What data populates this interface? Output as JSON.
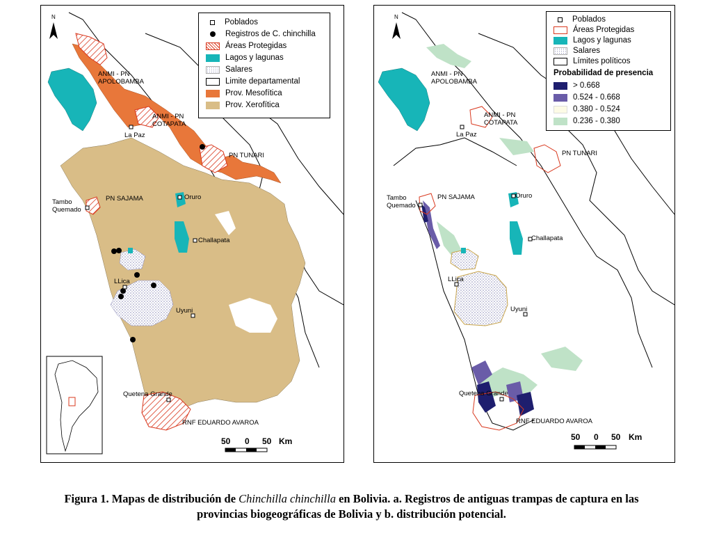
{
  "colors": {
    "mesofitica": "#e8773a",
    "xerofitica": "#d9bd87",
    "lagos": "#17b5b8",
    "areas_outline": "#d9381e",
    "prob_1": "#1e1e6e",
    "prob_2": "#6a5ca8",
    "prob_3": "#fdfbe6",
    "prob_4": "#bfe2c7"
  },
  "legend_a": {
    "items": [
      {
        "label": "Poblados",
        "icon": "hollow-square-icon"
      },
      {
        "label": "Registros de C. chinchilla",
        "icon": "black-dot-icon"
      },
      {
        "label": "Áreas Protegidas",
        "icon": "hatched-red-icon"
      },
      {
        "label": "Lagos y lagunas",
        "icon": "teal-fill-icon"
      },
      {
        "label": "Salares",
        "icon": "dotted-fill-icon"
      },
      {
        "label": "Limite departamental",
        "icon": "outline-box-icon"
      },
      {
        "label": "Prov. Mesofítica",
        "icon": "orange-fill-icon"
      },
      {
        "label": "Prov. Xerofítica",
        "icon": "tan-fill-icon"
      }
    ]
  },
  "legend_b": {
    "items": [
      {
        "label": "Poblados",
        "icon": "hollow-square-icon"
      },
      {
        "label": "Áreas Protegidas",
        "icon": "red-outline-icon"
      },
      {
        "label": "Lagos y lagunas",
        "icon": "teal-fill-icon"
      },
      {
        "label": "Salares",
        "icon": "dotted-fill-icon"
      },
      {
        "label": "Límites políticos",
        "icon": "outline-box-icon"
      }
    ],
    "prob_title": "Probabilidad de presencia",
    "prob_classes": [
      {
        "label": "> 0.668"
      },
      {
        "label": "0.524 - 0.668"
      },
      {
        "label": "0.380 - 0.524"
      },
      {
        "label": "0.236 - 0.380"
      }
    ]
  },
  "places": {
    "anmi_apolobamba": "ANMI - PN\nAPOLOBAMBA",
    "anmi_cotapata": "ANMI - PN\nCOTAPATA",
    "la_paz": "La Paz",
    "pn_tunari": "PN TUNARI",
    "tambo_quemado": "Tambo\nQuemado",
    "pn_sajama": "PN SAJAMA",
    "oruro": "Oruro",
    "challapata": "Challapata",
    "llica": "LLica",
    "uyuni": "Uyuni",
    "quetena_grande": "Quetena Grande",
    "rnf_avaroa": "RNF EDUARDO AVAROA"
  },
  "scale": {
    "labels": [
      "50",
      "0",
      "50"
    ],
    "unit": "Km"
  },
  "north_letter": "N",
  "caption": {
    "prefix": "Figura 1. Mapas de distribución de ",
    "species": "Chinchilla chinchilla",
    "suffix": " en Bolivia. a. Registros de antiguas trampas de captura en las",
    "line2": "provincias biogeográficas de Bolivia y b. distribución potencial."
  }
}
